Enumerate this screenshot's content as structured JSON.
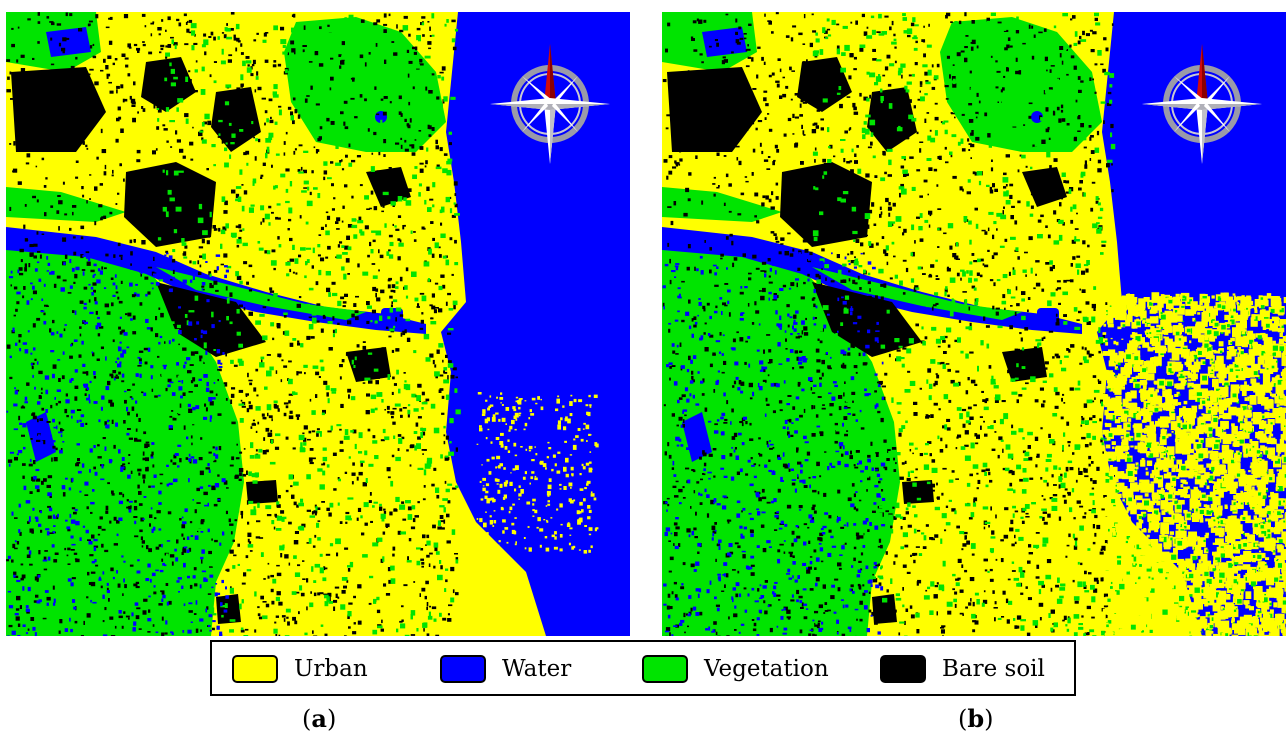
{
  "colors": {
    "urban": "#ffff00",
    "water": "#0000ff",
    "vegetation": "#00e400",
    "bare_soil": "#000000"
  },
  "legend": {
    "items": [
      {
        "label": "Urban",
        "color": "#ffff00"
      },
      {
        "label": "Water",
        "color": "#0000ff"
      },
      {
        "label": "Vegetation",
        "color": "#00e400"
      },
      {
        "label": "Bare soil",
        "color": "#000000"
      }
    ]
  },
  "panels": [
    {
      "label_open": "(",
      "label_letter": "a",
      "label_close": ")"
    },
    {
      "label_open": "(",
      "label_letter": "b",
      "label_close": ")"
    }
  ],
  "compass_icon": "north-arrow-compass-icon"
}
